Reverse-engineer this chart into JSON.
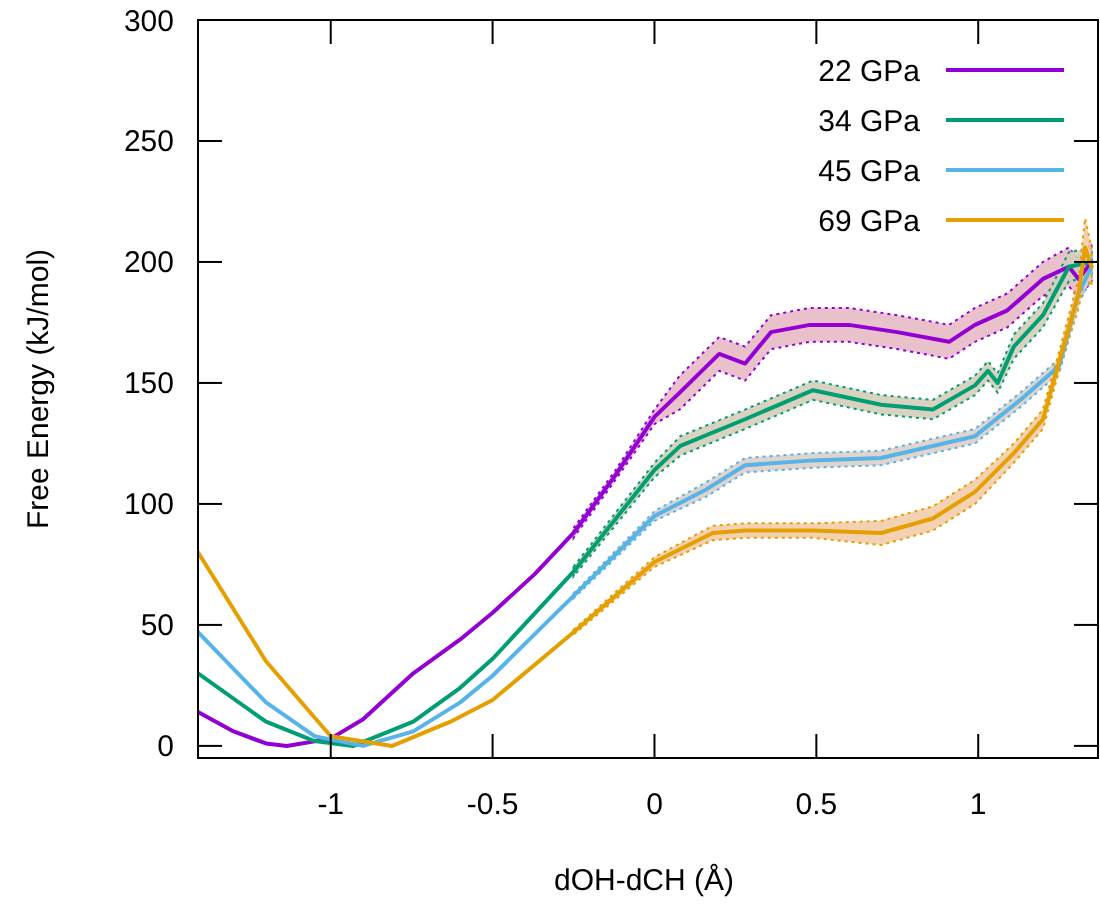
{
  "chart_data": {
    "type": "line",
    "xlabel": "dOH-dCH (Å)",
    "ylabel": "Free Energy (kJ/mol)",
    "xlim": [
      -1.41,
      1.37
    ],
    "ylim": [
      -5,
      300
    ],
    "xticks": [
      -1,
      -0.5,
      0,
      0.5,
      1
    ],
    "yticks": [
      0,
      50,
      100,
      150,
      200,
      250,
      300
    ],
    "grid": false,
    "legend": "top right",
    "marker": "none",
    "line_style": "solid",
    "series": [
      {
        "name": "22 GPa",
        "color": "#9400d3",
        "x": [
          -1.41,
          -1.3,
          -1.2,
          -1.136,
          -1.0,
          -0.9,
          -0.745,
          -0.6,
          -0.5,
          -0.37,
          -0.25,
          -0.12,
          0,
          0.078,
          0.2,
          0.28,
          0.36,
          0.48,
          0.6,
          0.75,
          0.91,
          0.99,
          1.09,
          1.2,
          1.28,
          1.31,
          1.35
        ],
        "values": [
          14,
          6,
          1,
          0,
          3,
          11,
          30,
          44,
          55,
          71,
          88,
          112,
          136,
          146,
          162,
          158,
          171,
          174,
          174,
          171,
          167,
          174,
          180,
          193,
          198,
          193,
          200
        ],
        "lower": [
          null,
          null,
          null,
          null,
          null,
          null,
          null,
          null,
          null,
          null,
          86,
          110,
          133,
          139,
          155,
          151,
          164,
          167,
          167,
          164,
          160,
          167,
          173,
          186,
          190,
          185,
          192
        ],
        "upper": [
          null,
          null,
          null,
          null,
          null,
          null,
          null,
          null,
          null,
          null,
          90,
          114,
          139,
          153,
          169,
          165,
          178,
          181,
          181,
          178,
          174,
          181,
          187,
          200,
          206,
          201,
          208
        ]
      },
      {
        "name": "34 GPa",
        "color": "#009e73",
        "x": [
          -1.41,
          -1.2,
          -1.05,
          -0.93,
          -0.745,
          -0.6,
          -0.5,
          -0.25,
          0,
          0.08,
          0.28,
          0.49,
          0.7,
          0.86,
          0.99,
          1.03,
          1.06,
          1.11,
          1.2,
          1.28,
          1.35
        ],
        "values": [
          30,
          10,
          2,
          0,
          10,
          24,
          36,
          72,
          114,
          124,
          135,
          147,
          141,
          139,
          149,
          155,
          150,
          165,
          178,
          198,
          200
        ],
        "lower": [
          null,
          null,
          null,
          null,
          null,
          null,
          null,
          70,
          111,
          120,
          131,
          143,
          137,
          135,
          145,
          151,
          146,
          160,
          173,
          192,
          194
        ],
        "upper": [
          null,
          null,
          null,
          null,
          null,
          null,
          null,
          74,
          117,
          128,
          139,
          151,
          145,
          143,
          153,
          159,
          154,
          170,
          183,
          204,
          206
        ]
      },
      {
        "name": "45 GPa",
        "color": "#56b4e9",
        "x": [
          -1.41,
          -1.2,
          -1.05,
          -0.9,
          -0.745,
          -0.6,
          -0.5,
          -0.25,
          0,
          0.16,
          0.28,
          0.49,
          0.7,
          0.99,
          1.13,
          1.25,
          1.31,
          1.35
        ],
        "values": [
          47,
          18,
          4,
          0,
          6,
          18,
          29,
          62,
          95,
          106,
          116,
          118,
          119,
          128,
          143,
          157,
          187,
          198
        ],
        "lower": [
          null,
          null,
          null,
          null,
          null,
          null,
          null,
          61,
          93,
          103,
          113,
          115,
          116,
          125,
          140,
          154,
          183,
          193
        ],
        "upper": [
          null,
          null,
          null,
          null,
          null,
          null,
          null,
          63,
          97,
          109,
          119,
          121,
          122,
          131,
          146,
          160,
          191,
          203
        ]
      },
      {
        "name": "69 GPa",
        "color": "#e69f00",
        "x": [
          -1.41,
          -1.2,
          -1.0,
          -0.81,
          -0.63,
          -0.5,
          -0.25,
          0,
          0.18,
          0.28,
          0.49,
          0.7,
          0.86,
          0.99,
          1.11,
          1.2,
          1.25,
          1.31,
          1.33,
          1.35
        ],
        "values": [
          80,
          35,
          4,
          0,
          10,
          19,
          47,
          76,
          88,
          89,
          89,
          88,
          94,
          105,
          121,
          135,
          159,
          187,
          206,
          198
        ],
        "lower": [
          null,
          null,
          null,
          null,
          null,
          null,
          46,
          74,
          85,
          86,
          86,
          83,
          89,
          100,
          117,
          131,
          155,
          181,
          194,
          190
        ],
        "upper": [
          null,
          null,
          null,
          null,
          null,
          null,
          48,
          78,
          91,
          92,
          92,
          93,
          99,
          110,
          125,
          139,
          163,
          193,
          218,
          206
        ]
      }
    ]
  }
}
